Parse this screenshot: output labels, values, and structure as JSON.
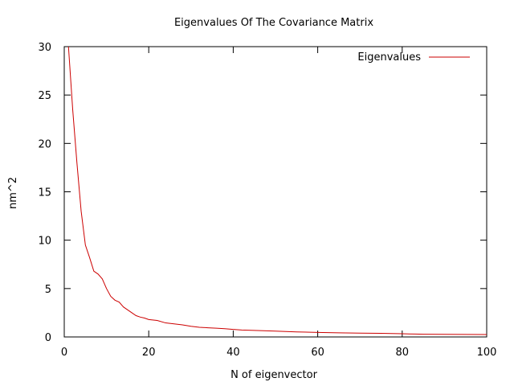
{
  "chart_data": {
    "type": "line",
    "title": "Eigenvalues Of The Covariance Matrix",
    "xlabel": "N of eigenvector",
    "ylabel": "nm^2",
    "xlim": [
      0,
      100
    ],
    "ylim": [
      0,
      30
    ],
    "grid": false,
    "legend_position": "top-right",
    "x_ticks": [
      0,
      20,
      40,
      60,
      80,
      100
    ],
    "y_ticks": [
      0,
      5,
      10,
      15,
      20,
      25,
      30
    ],
    "series": [
      {
        "name": "Eigenvalues",
        "color": "#cc0000",
        "x": [
          1,
          2,
          3,
          4,
          5,
          6,
          7,
          8,
          9,
          10,
          11,
          12,
          13,
          14,
          15,
          16,
          17,
          18,
          19,
          20,
          22,
          24,
          26,
          28,
          30,
          32,
          34,
          36,
          38,
          40,
          42,
          45,
          50,
          55,
          60,
          65,
          70,
          75,
          80,
          83,
          85,
          90,
          95,
          100
        ],
        "y": [
          30.0,
          23.5,
          18.0,
          13.0,
          9.5,
          8.2,
          6.8,
          6.5,
          6.0,
          5.0,
          4.2,
          3.8,
          3.6,
          3.1,
          2.8,
          2.5,
          2.2,
          2.05,
          1.95,
          1.8,
          1.7,
          1.45,
          1.35,
          1.25,
          1.1,
          1.0,
          0.95,
          0.9,
          0.85,
          0.78,
          0.72,
          0.68,
          0.6,
          0.52,
          0.47,
          0.43,
          0.4,
          0.37,
          0.33,
          0.3,
          0.28,
          0.27,
          0.26,
          0.25
        ]
      }
    ]
  }
}
